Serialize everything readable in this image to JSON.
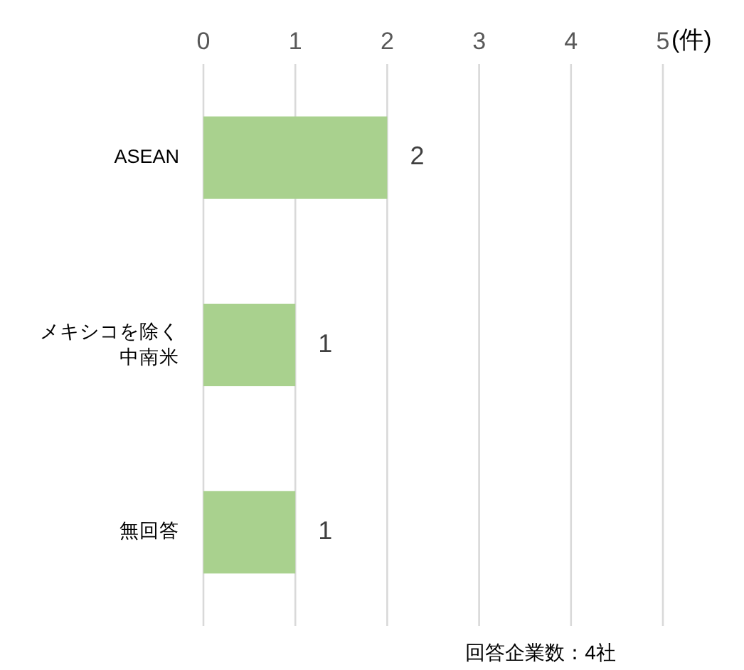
{
  "chart_data": {
    "type": "bar",
    "orientation": "horizontal",
    "categories": [
      "ASEAN",
      "メキシコを除く中南米",
      "無回答"
    ],
    "values": [
      2,
      1,
      1
    ],
    "color": "#a9d18e",
    "xlim": [
      0,
      5
    ],
    "xticks": [
      0,
      1,
      2,
      3,
      4,
      5
    ],
    "xlabel": "(件)",
    "grid": "x",
    "data_labels": true,
    "annotations": [
      "回答企業数：4社"
    ]
  }
}
